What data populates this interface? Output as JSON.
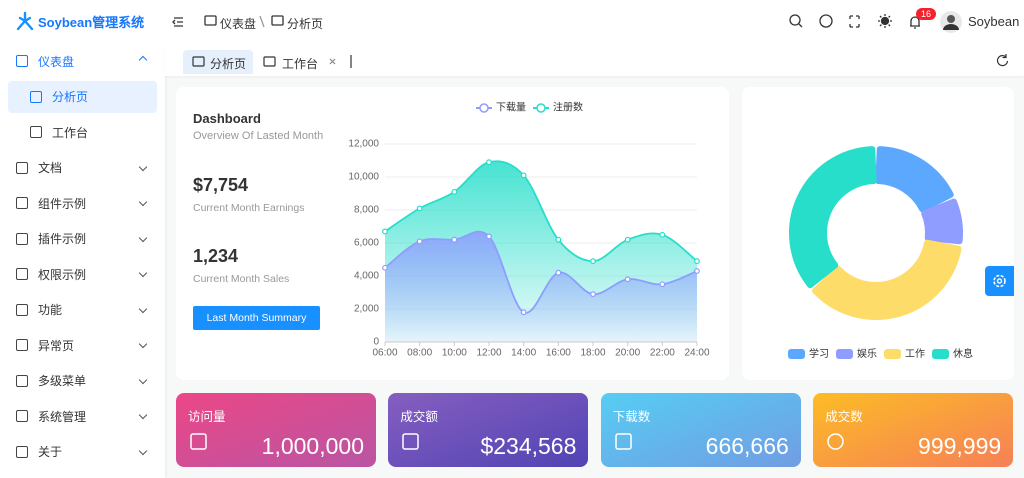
{
  "sidebar": {
    "logo": "Soybean管理系统",
    "menu": [
      {
        "label": "仪表盘",
        "children": [
          "分析页",
          "工作台"
        ],
        "expanded": true,
        "active_child": 0
      },
      {
        "label": "文档"
      },
      {
        "label": "组件示例"
      },
      {
        "label": "插件示例"
      },
      {
        "label": "权限示例"
      },
      {
        "label": "功能"
      },
      {
        "label": "异常页"
      },
      {
        "label": "多级菜单"
      },
      {
        "label": "系统管理"
      },
      {
        "label": "关于"
      }
    ]
  },
  "header": {
    "breadcrumb": [
      "仪表盘",
      "分析页"
    ],
    "notification_count": 16,
    "user": "Soybean"
  },
  "tabs": [
    "分析页",
    "工作台"
  ],
  "summary": {
    "title": "Dashboard",
    "subtitle": "Overview Of Lasted Month",
    "earnings": "$7,754",
    "earnings_label": "Current Month Earnings",
    "sales": "1,234",
    "sales_label": "Current Month Sales",
    "button": "Last Month Summary"
  },
  "chart_data": [
    {
      "type": "line",
      "x": [
        "06:00",
        "08:00",
        "10:00",
        "12:00",
        "14:00",
        "16:00",
        "18:00",
        "20:00",
        "22:00",
        "24:00"
      ],
      "series": [
        {
          "name": "下载量",
          "color": "#8e9dff",
          "values": [
            4500,
            6100,
            6200,
            6400,
            1800,
            4200,
            2900,
            3800,
            3500,
            4300
          ]
        },
        {
          "name": "注册数",
          "color": "#26deca",
          "values": [
            6700,
            8100,
            9100,
            10900,
            10100,
            6200,
            4900,
            6200,
            6500,
            4900
          ]
        }
      ],
      "ylim": [
        0,
        12000
      ],
      "yticks": [
        0,
        {
          "value": 2000,
          "label": "2,000"
        },
        {
          "value": 4000,
          "label": "4,000"
        },
        {
          "value": 6000,
          "label": "6,000"
        },
        {
          "value": 8000,
          "label": "8,000"
        },
        {
          "value": 10000,
          "label": "10,000"
        },
        {
          "value": 12000,
          "label": "12,000"
        }
      ],
      "grid": true,
      "smooth": true
    },
    {
      "type": "pie",
      "donut": true,
      "categories": [
        "学习",
        "娱乐",
        "工作",
        "休息"
      ],
      "values": [
        20,
        10,
        40,
        40
      ],
      "colors": [
        "#5da8ff",
        "#8e9dff",
        "#fedc69",
        "#26deca"
      ]
    }
  ],
  "cards": [
    {
      "title": "访问量",
      "value": "1,000,000",
      "colors": [
        "#ec4786",
        "#b955a4"
      ]
    },
    {
      "title": "成交额",
      "value": "$234,568",
      "colors": [
        "#865ec0",
        "#5144b4"
      ]
    },
    {
      "title": "下载数",
      "value": "666,666",
      "colors": [
        "#56cdf3",
        "#719de3"
      ]
    },
    {
      "title": "成交数",
      "value": "999,999",
      "colors": [
        "#fcbc25",
        "#f68057"
      ]
    }
  ]
}
